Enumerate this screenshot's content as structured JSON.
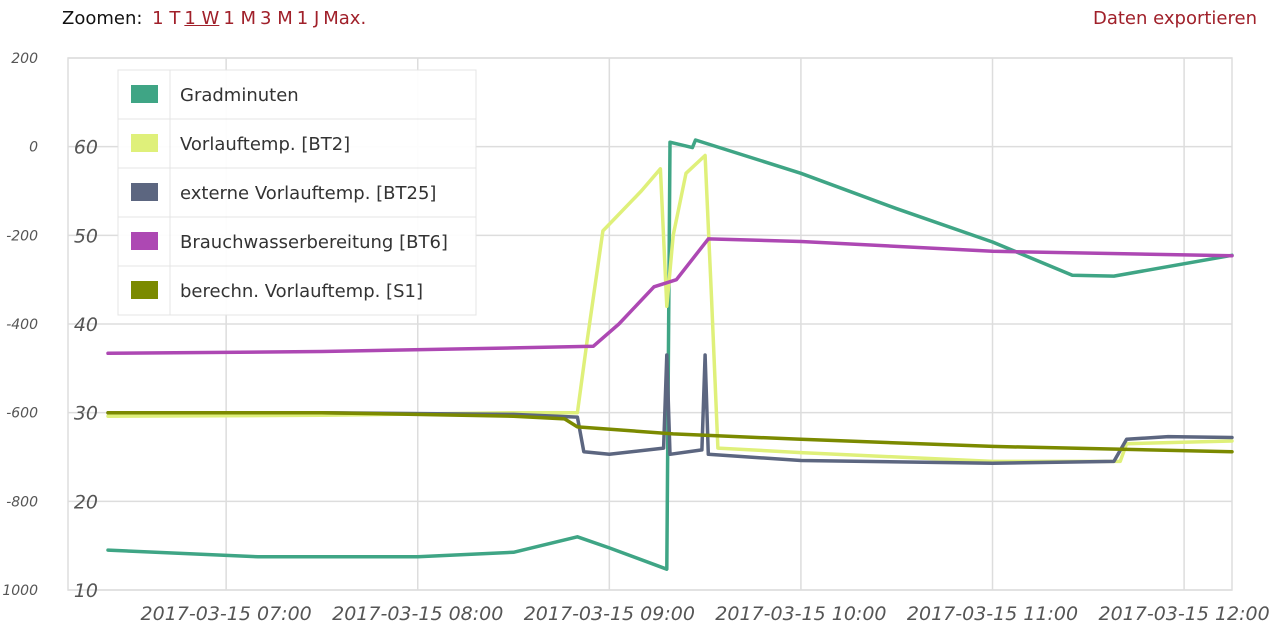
{
  "toolbar": {
    "zoom_label": "Zoomen:",
    "zoom_options": [
      {
        "label": "1 T",
        "active": false
      },
      {
        "label": "1 W",
        "active": true
      },
      {
        "label": "1 M",
        "active": false
      },
      {
        "label": "3 M",
        "active": false
      },
      {
        "label": "1 J",
        "active": false
      },
      {
        "label": "Max.",
        "active": false
      }
    ],
    "export_label": "Daten exportieren"
  },
  "colors": {
    "grid": "#dddddd",
    "link": "#a0202a"
  },
  "chart_data": {
    "type": "line",
    "grid": true,
    "legend_placement": "top-left",
    "x_axis": {
      "ticks": [
        "2017-03-15 07:00",
        "2017-03-15 08:00",
        "2017-03-15 09:00",
        "2017-03-15 10:00",
        "2017-03-15 11:00",
        "2017-03-15 12:00"
      ],
      "range": [
        "2017-03-15 06:23",
        "2017-03-15 12:15"
      ]
    },
    "y_axis_left_outer": {
      "ticks": [
        "200",
        "0",
        "-200",
        "-400",
        "-600",
        "-800",
        "1000"
      ],
      "range": [
        -1000,
        200
      ]
    },
    "y_axis_left_inner": {
      "ticks": [
        "60",
        "50",
        "40",
        "30",
        "20",
        "10"
      ],
      "range": [
        10,
        70
      ]
    },
    "series": [
      {
        "name": "Gradminuten",
        "color": "#3fa585",
        "axis": "outer",
        "points": [
          [
            "2017-03-15 06:23",
            -910
          ],
          [
            "2017-03-15 07:10",
            -925
          ],
          [
            "2017-03-15 08:00",
            -925
          ],
          [
            "2017-03-15 08:30",
            -915
          ],
          [
            "2017-03-15 08:50",
            -880
          ],
          [
            "2017-03-15 09:00",
            -905
          ],
          [
            "2017-03-15 09:18",
            -953
          ],
          [
            "2017-03-15 09:19",
            10
          ],
          [
            "2017-03-15 09:26",
            -2
          ],
          [
            "2017-03-15 09:27",
            15
          ],
          [
            "2017-03-15 10:00",
            -60
          ],
          [
            "2017-03-15 10:30",
            -140
          ],
          [
            "2017-03-15 11:00",
            -215
          ],
          [
            "2017-03-15 11:25",
            -290
          ],
          [
            "2017-03-15 11:38",
            -292
          ],
          [
            "2017-03-15 12:15",
            -245
          ]
        ]
      },
      {
        "name": "Vorlauftemp. [BT2]",
        "color": "#dff07a",
        "axis": "inner",
        "points": [
          [
            "2017-03-15 06:23",
            29.6
          ],
          [
            "2017-03-15 07:30",
            29.7
          ],
          [
            "2017-03-15 08:30",
            30.0
          ],
          [
            "2017-03-15 08:50",
            30.0
          ],
          [
            "2017-03-15 08:53",
            38
          ],
          [
            "2017-03-15 08:58",
            50.5
          ],
          [
            "2017-03-15 09:10",
            55
          ],
          [
            "2017-03-15 09:16",
            57.5
          ],
          [
            "2017-03-15 09:18",
            42
          ],
          [
            "2017-03-15 09:20",
            50
          ],
          [
            "2017-03-15 09:24",
            57
          ],
          [
            "2017-03-15 09:30",
            59
          ],
          [
            "2017-03-15 09:32",
            43
          ],
          [
            "2017-03-15 09:34",
            26
          ],
          [
            "2017-03-15 10:00",
            25.5
          ],
          [
            "2017-03-15 11:00",
            24.5
          ],
          [
            "2017-03-15 11:40",
            24.5
          ],
          [
            "2017-03-15 11:42",
            26.5
          ],
          [
            "2017-03-15 12:15",
            26.8
          ]
        ]
      },
      {
        "name": "externe Vorlauftemp. [BT25]",
        "color": "#5c6680",
        "axis": "inner",
        "points": [
          [
            "2017-03-15 06:23",
            30.0
          ],
          [
            "2017-03-15 07:30",
            30.0
          ],
          [
            "2017-03-15 08:30",
            29.8
          ],
          [
            "2017-03-15 08:50",
            29.5
          ],
          [
            "2017-03-15 08:52",
            25.6
          ],
          [
            "2017-03-15 09:00",
            25.3
          ],
          [
            "2017-03-15 09:17",
            26.0
          ],
          [
            "2017-03-15 09:18",
            36.5
          ],
          [
            "2017-03-15 09:19",
            25.3
          ],
          [
            "2017-03-15 09:29",
            25.8
          ],
          [
            "2017-03-15 09:30",
            36.5
          ],
          [
            "2017-03-15 09:31",
            25.3
          ],
          [
            "2017-03-15 10:00",
            24.6
          ],
          [
            "2017-03-15 11:00",
            24.3
          ],
          [
            "2017-03-15 11:38",
            24.5
          ],
          [
            "2017-03-15 11:42",
            27.0
          ],
          [
            "2017-03-15 11:55",
            27.3
          ],
          [
            "2017-03-15 12:15",
            27.2
          ]
        ]
      },
      {
        "name": "Brauchwasserbereitung [BT6]",
        "color": "#ad48b3",
        "axis": "inner",
        "points": [
          [
            "2017-03-15 06:23",
            36.7
          ],
          [
            "2017-03-15 07:30",
            36.9
          ],
          [
            "2017-03-15 08:30",
            37.3
          ],
          [
            "2017-03-15 08:55",
            37.5
          ],
          [
            "2017-03-15 09:03",
            40
          ],
          [
            "2017-03-15 09:14",
            44.2
          ],
          [
            "2017-03-15 09:21",
            45.0
          ],
          [
            "2017-03-15 09:31",
            49.6
          ],
          [
            "2017-03-15 10:00",
            49.3
          ],
          [
            "2017-03-15 11:00",
            48.2
          ],
          [
            "2017-03-15 12:15",
            47.7
          ]
        ]
      },
      {
        "name": "berechn. Vorlauftemp. [S1]",
        "color": "#7b8a00",
        "axis": "inner",
        "points": [
          [
            "2017-03-15 06:23",
            30.0
          ],
          [
            "2017-03-15 07:30",
            30.0
          ],
          [
            "2017-03-15 08:30",
            29.6
          ],
          [
            "2017-03-15 08:46",
            29.3
          ],
          [
            "2017-03-15 08:50",
            28.4
          ],
          [
            "2017-03-15 09:20",
            27.6
          ],
          [
            "2017-03-15 10:00",
            27.0
          ],
          [
            "2017-03-15 11:00",
            26.2
          ],
          [
            "2017-03-15 12:15",
            25.6
          ]
        ]
      }
    ]
  }
}
